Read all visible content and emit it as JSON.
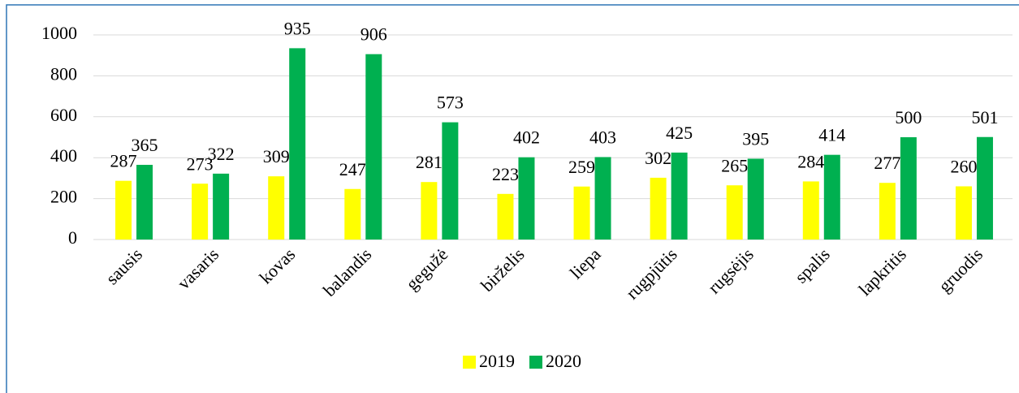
{
  "chart_data": {
    "type": "bar",
    "categories": [
      "sausis",
      "vasaris",
      "kovas",
      "balandis",
      "gegužė",
      "birželis",
      "liepa",
      "rugpjūtis",
      "rugsėjis",
      "spalis",
      "lapkritis",
      "gruodis"
    ],
    "series": [
      {
        "name": "2019",
        "color": "#ffff00",
        "values": [
          287,
          273,
          309,
          247,
          281,
          223,
          259,
          302,
          265,
          284,
          277,
          260
        ]
      },
      {
        "name": "2020",
        "color": "#00b050",
        "values": [
          365,
          322,
          935,
          906,
          573,
          402,
          403,
          425,
          395,
          414,
          500,
          501
        ]
      }
    ],
    "ylim": [
      0,
      1000
    ],
    "yticks": [
      0,
      200,
      400,
      600,
      800,
      1000
    ],
    "grid": true,
    "legend": "bottom"
  }
}
